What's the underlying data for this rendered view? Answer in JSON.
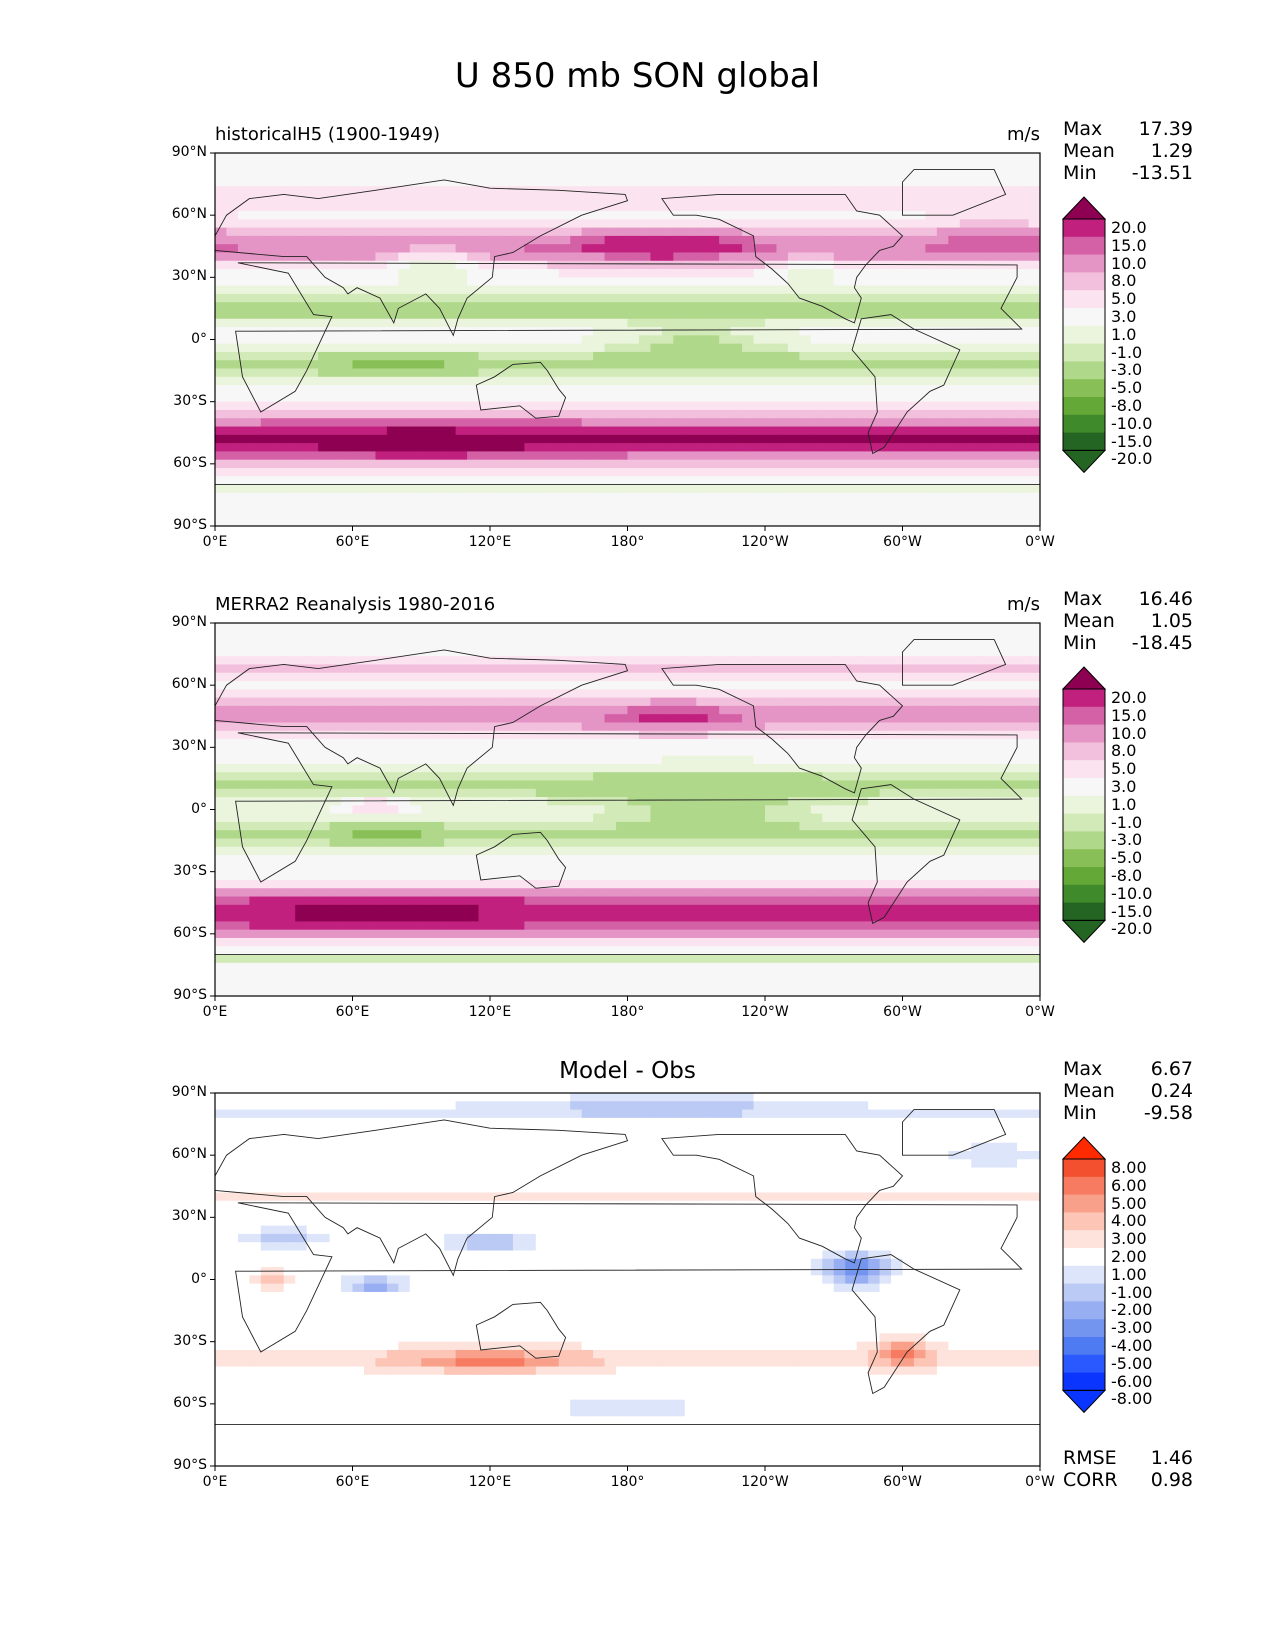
{
  "figure": {
    "title": "U 850 mb SON global"
  },
  "axes": {
    "lat_ticks": [
      "90°N",
      "60°N",
      "30°N",
      "0°",
      "30°S",
      "60°S",
      "90°S"
    ],
    "lon_ticks": [
      "0°E",
      "60°E",
      "120°E",
      "180°",
      "120°W",
      "60°W",
      "0°W"
    ]
  },
  "colors": {
    "pinkgreen": [
      "#246523",
      "#3f8a2b",
      "#64a838",
      "#88c057",
      "#b0d88a",
      "#d2eab8",
      "#ebf5dd",
      "#f7f7f7",
      "#fbe4ef",
      "#f2bfdc",
      "#e594c6",
      "#d461a6",
      "#c1207f",
      "#8e0152"
    ],
    "bluered": [
      "#0a35ff",
      "#2a5aff",
      "#4f7bf2",
      "#7395f0",
      "#97aef2",
      "#bbc9f5",
      "#dde5fa",
      "#ffffff",
      "#fde3dc",
      "#fcc5b6",
      "#f9a08a",
      "#f67b60",
      "#f2502f",
      "#ff2a00"
    ]
  },
  "chart_data": [
    {
      "type": "heatmap",
      "panel": "model",
      "title": "historicalH5 (1900-1949)",
      "units": "m/s",
      "stats": [
        {
          "label": "Max",
          "value": "17.39"
        },
        {
          "label": "Mean",
          "value": "1.29"
        },
        {
          "label": "Min",
          "value": "-13.51"
        }
      ],
      "colorbar": {
        "levels": [
          "20.0",
          "15.0",
          "10.0",
          "8.0",
          "5.0",
          "3.0",
          "1.0",
          "-1.0",
          "-3.0",
          "-5.0",
          "-8.0",
          "-10.0",
          "-15.0",
          "-20.0"
        ],
        "palette": "pinkgreen",
        "extend": "both"
      },
      "xlim": [
        0,
        360
      ],
      "ylim": [
        -90,
        90
      ],
      "field": {
        "jets": [
          {
            "lat": -48,
            "width": 10,
            "amp": 15
          },
          {
            "lat": 45,
            "width": 9,
            "amp": 8
          },
          {
            "lat": 15,
            "width": 7,
            "amp": -7
          },
          {
            "lat": -12,
            "width": 8,
            "amp": -6
          },
          {
            "lat": 68,
            "width": 6,
            "amp": 2
          },
          {
            "lat": -72,
            "width": 3,
            "amp": -3
          }
        ],
        "blobs": [
          {
            "lon": 195,
            "lat": 45,
            "rlon": 30,
            "rlat": 7,
            "amp": 7
          },
          {
            "lon": 90,
            "lat": -50,
            "rlon": 50,
            "rlat": 7,
            "amp": 5
          },
          {
            "lon": 210,
            "lat": -2,
            "rlon": 30,
            "rlat": 8,
            "amp": -5
          },
          {
            "lon": 80,
            "lat": -12,
            "rlon": 25,
            "rlat": 6,
            "amp": -4
          },
          {
            "lon": 95,
            "lat": 38,
            "rlon": 20,
            "rlat": 10,
            "amp": -5
          },
          {
            "lon": 260,
            "lat": 35,
            "rlon": 10,
            "rlat": 8,
            "amp": -4
          },
          {
            "lon": 340,
            "lat": 52,
            "rlon": 20,
            "rlat": 8,
            "amp": 3
          }
        ]
      }
    },
    {
      "type": "heatmap",
      "panel": "obs",
      "title": "MERRA2 Reanalysis 1980-2016",
      "units": "m/s",
      "stats": [
        {
          "label": "Max",
          "value": "16.46"
        },
        {
          "label": "Mean",
          "value": "1.05"
        },
        {
          "label": "Min",
          "value": "-18.45"
        }
      ],
      "colorbar": {
        "levels": [
          "20.0",
          "15.0",
          "10.0",
          "8.0",
          "5.0",
          "3.0",
          "1.0",
          "-1.0",
          "-3.0",
          "-5.0",
          "-8.0",
          "-10.0",
          "-15.0",
          "-20.0"
        ],
        "palette": "pinkgreen",
        "extend": "both"
      },
      "xlim": [
        0,
        360
      ],
      "ylim": [
        -90,
        90
      ],
      "field": {
        "jets": [
          {
            "lat": -50,
            "width": 10,
            "amp": 14
          },
          {
            "lat": 45,
            "width": 9,
            "amp": 6
          },
          {
            "lat": 12,
            "width": 9,
            "amp": -6
          },
          {
            "lat": -12,
            "width": 8,
            "amp": -5
          },
          {
            "lat": 68,
            "width": 6,
            "amp": 3
          },
          {
            "lat": -72,
            "width": 3,
            "amp": -4
          }
        ],
        "blobs": [
          {
            "lon": 200,
            "lat": 45,
            "rlon": 30,
            "rlat": 7,
            "amp": 5
          },
          {
            "lon": 75,
            "lat": -50,
            "rlon": 40,
            "rlat": 6,
            "amp": 5
          },
          {
            "lon": 215,
            "lat": 0,
            "rlon": 40,
            "rlat": 10,
            "amp": -5
          },
          {
            "lon": 70,
            "lat": 2,
            "rlon": 15,
            "rlat": 5,
            "amp": 5
          },
          {
            "lon": 75,
            "lat": -12,
            "rlon": 25,
            "rlat": 6,
            "amp": -4
          }
        ]
      }
    },
    {
      "type": "heatmap",
      "panel": "diff",
      "title": "Model - Obs",
      "stats": [
        {
          "label": "Max",
          "value": "6.67"
        },
        {
          "label": "Mean",
          "value": "0.24"
        },
        {
          "label": "Min",
          "value": "-9.58"
        }
      ],
      "colorbar": {
        "levels": [
          "8.00",
          "6.00",
          "5.00",
          "4.00",
          "3.00",
          "2.00",
          "1.00",
          "-1.00",
          "-2.00",
          "-3.00",
          "-4.00",
          "-5.00",
          "-6.00",
          "-8.00"
        ],
        "palette": "bluered",
        "extend": "both"
      },
      "xlim": [
        0,
        360
      ],
      "ylim": [
        -90,
        90
      ],
      "metrics": [
        {
          "label": "RMSE",
          "value": "1.46"
        },
        {
          "label": "CORR",
          "value": "0.98"
        }
      ],
      "field": {
        "jets": [
          {
            "lat": -38,
            "width": 7,
            "amp": 2
          },
          {
            "lat": 40,
            "width": 6,
            "amp": 1.5
          },
          {
            "lat": 80,
            "width": 5,
            "amp": -1.5
          }
        ],
        "blobs": [
          {
            "lon": 280,
            "lat": 5,
            "rlon": 15,
            "rlat": 8,
            "amp": -5
          },
          {
            "lon": 70,
            "lat": -3,
            "rlon": 15,
            "rlat": 4,
            "amp": -4
          },
          {
            "lon": 120,
            "lat": 18,
            "rlon": 20,
            "rlat": 5,
            "amp": -3
          },
          {
            "lon": 120,
            "lat": -40,
            "rlon": 30,
            "rlat": 5,
            "amp": 3
          },
          {
            "lon": 300,
            "lat": -35,
            "rlon": 10,
            "rlat": 8,
            "amp": 3
          },
          {
            "lon": 25,
            "lat": 0,
            "rlon": 12,
            "rlat": 5,
            "amp": 2.5
          },
          {
            "lon": 195,
            "lat": 85,
            "rlon": 60,
            "rlat": 5,
            "amp": -2
          },
          {
            "lon": 180,
            "lat": -62,
            "rlon": 40,
            "rlat": 4,
            "amp": -2
          },
          {
            "lon": 340,
            "lat": 60,
            "rlon": 25,
            "rlat": 6,
            "amp": -2
          },
          {
            "lon": 30,
            "lat": 20,
            "rlon": 20,
            "rlat": 5,
            "amp": -2.5
          }
        ]
      }
    }
  ]
}
